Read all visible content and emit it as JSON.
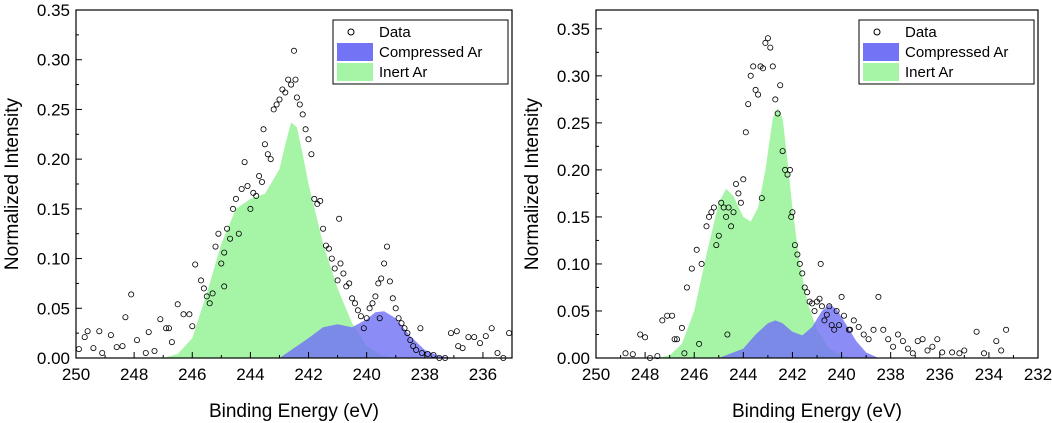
{
  "chart_data": [
    {
      "type": "scatter",
      "title": "",
      "xlabel": "Binding Energy (eV)",
      "ylabel": "Normalized Intensity",
      "xlim": [
        250,
        235
      ],
      "ylim": [
        0,
        0.35
      ],
      "xticks": [
        250,
        248,
        246,
        244,
        242,
        240,
        238,
        236
      ],
      "xtick_labels": [
        "250",
        "248",
        "246",
        "244",
        "242",
        "240",
        "238",
        "236"
      ],
      "yticks": [
        0,
        0.05,
        0.1,
        0.15,
        0.2,
        0.25,
        0.3,
        0.35
      ],
      "ytick_labels": [
        "0.00",
        "0.05",
        "0.10",
        "0.15",
        "0.20",
        "0.25",
        "0.30",
        "0.35"
      ],
      "legend": [
        "Data",
        "Compressed Ar",
        "Inert Ar"
      ],
      "legend_position": "top-right",
      "series": [
        {
          "name": "Inert Ar",
          "kind": "area",
          "color": "#a6f5a6",
          "x": [
            247.0,
            246.5,
            246.0,
            245.5,
            245.0,
            244.5,
            244.0,
            243.5,
            243.0,
            242.8,
            242.6,
            242.4,
            242.2,
            242.0,
            241.5,
            241.0,
            240.5,
            240.0,
            239.5,
            239.0
          ],
          "y": [
            0.0,
            0.004,
            0.02,
            0.065,
            0.115,
            0.15,
            0.16,
            0.165,
            0.19,
            0.215,
            0.237,
            0.232,
            0.205,
            0.175,
            0.115,
            0.07,
            0.035,
            0.012,
            0.003,
            0.0
          ]
        },
        {
          "name": "Compressed Ar",
          "kind": "area",
          "color": "#7373f5",
          "x": [
            243.0,
            242.0,
            241.5,
            241.0,
            240.5,
            240.0,
            239.7,
            239.4,
            239.0,
            238.5,
            238.0,
            237.5,
            237.0
          ],
          "y": [
            0.0,
            0.02,
            0.031,
            0.034,
            0.031,
            0.039,
            0.046,
            0.047,
            0.04,
            0.022,
            0.008,
            0.002,
            0.0
          ]
        },
        {
          "name": "Data",
          "kind": "points",
          "x": [
            249.9,
            249.6,
            249.4,
            249.1,
            248.8,
            248.6,
            248.3,
            248.1,
            247.9,
            247.5,
            247.3,
            247.1,
            246.9,
            246.7,
            246.5,
            246.3,
            246.1,
            245.9,
            245.7,
            245.6,
            245.5,
            245.4,
            245.2,
            245.1,
            245.0,
            244.9,
            244.8,
            244.7,
            244.6,
            244.5,
            244.4,
            244.3,
            244.2,
            244.1,
            244.0,
            243.9,
            243.8,
            243.7,
            243.6,
            243.5,
            243.4,
            243.3,
            243.2,
            243.1,
            243.0,
            242.9,
            242.8,
            242.7,
            242.6,
            242.5,
            242.4,
            242.3,
            242.2,
            242.1,
            242.0,
            241.9,
            241.8,
            241.7,
            241.6,
            241.5,
            241.4,
            241.3,
            241.2,
            241.1,
            241.0,
            240.9,
            240.8,
            240.7,
            240.6,
            240.5,
            240.4,
            240.3,
            240.2,
            240.1,
            240.0,
            239.9,
            239.8,
            239.7,
            239.6,
            239.5,
            239.4,
            239.3,
            239.2,
            239.1,
            239.0,
            238.9,
            238.8,
            238.7,
            238.6,
            238.5,
            238.4,
            238.3,
            238.1,
            237.9,
            237.7,
            237.5,
            237.3,
            237.1,
            236.9,
            236.7,
            236.5,
            236.3,
            236.1,
            235.9,
            235.7,
            235.5,
            235.3,
            235.1,
            244.9,
            245.3,
            246.0,
            246.8,
            247.6,
            248.4,
            249.2,
            249.7,
            243.55,
            242.45,
            240.95,
            239.55,
            238.15,
            236.85
          ],
          "y": [
            0.009,
            0.027,
            0.01,
            0.005,
            0.023,
            0.011,
            0.041,
            0.064,
            0.018,
            0.026,
            0.007,
            0.039,
            0.03,
            0.016,
            0.054,
            0.044,
            0.044,
            0.094,
            0.078,
            0.07,
            0.062,
            0.055,
            0.112,
            0.125,
            0.095,
            0.106,
            0.13,
            0.12,
            0.15,
            0.16,
            0.125,
            0.17,
            0.197,
            0.173,
            0.15,
            0.166,
            0.163,
            0.183,
            0.177,
            0.215,
            0.205,
            0.2,
            0.25,
            0.255,
            0.26,
            0.27,
            0.267,
            0.28,
            0.275,
            0.309,
            0.262,
            0.255,
            0.245,
            0.23,
            0.22,
            0.205,
            0.16,
            0.155,
            0.158,
            0.13,
            0.113,
            0.11,
            0.1,
            0.09,
            0.078,
            0.095,
            0.085,
            0.072,
            0.075,
            0.06,
            0.055,
            0.048,
            0.042,
            0.03,
            0.04,
            0.05,
            0.055,
            0.062,
            0.075,
            0.08,
            0.095,
            0.112,
            0.077,
            0.06,
            0.05,
            0.04,
            0.035,
            0.03,
            0.025,
            0.018,
            0.012,
            0.008,
            0.005,
            0.004,
            0.003,
            0.0,
            0.0,
            0.025,
            0.027,
            0.01,
            0.021,
            0.021,
            0.015,
            0.022,
            0.03,
            0.005,
            0.0,
            0.025,
            0.072,
            0.065,
            0.032,
            0.03,
            0.005,
            0.012,
            0.027,
            0.021,
            0.23,
            0.28,
            0.14,
            0.04,
            0.03,
            0.012
          ]
        }
      ]
    },
    {
      "type": "scatter",
      "title": "",
      "xlabel": "Binding Energy (eV)",
      "ylabel": "Normalized Intensity",
      "xlim": [
        250,
        232
      ],
      "ylim": [
        0,
        0.37
      ],
      "xticks": [
        250,
        248,
        246,
        244,
        242,
        240,
        238,
        236,
        234,
        232
      ],
      "xtick_labels": [
        "250",
        "248",
        "246",
        "244",
        "242",
        "240",
        "238",
        "236",
        "234",
        "232"
      ],
      "yticks": [
        0,
        0.05,
        0.1,
        0.15,
        0.2,
        0.25,
        0.3,
        0.35
      ],
      "ytick_labels": [
        "0.00",
        "0.05",
        "0.10",
        "0.15",
        "0.20",
        "0.25",
        "0.30",
        "0.35"
      ],
      "legend": [
        "Data",
        "Compressed Ar",
        "Inert Ar"
      ],
      "legend_position": "top-right",
      "series": [
        {
          "name": "Inert Ar",
          "kind": "area",
          "color": "#a6f5a6",
          "x": [
            247.5,
            247.0,
            246.5,
            246.0,
            245.5,
            245.0,
            244.7,
            244.4,
            244.0,
            243.7,
            243.4,
            243.1,
            242.8,
            242.6,
            242.4,
            242.2,
            242.0,
            241.7,
            241.4,
            241.0,
            240.5,
            240.0,
            239.5
          ],
          "y": [
            0.0,
            0.003,
            0.015,
            0.05,
            0.11,
            0.165,
            0.18,
            0.172,
            0.15,
            0.145,
            0.16,
            0.2,
            0.255,
            0.266,
            0.255,
            0.21,
            0.16,
            0.1,
            0.06,
            0.03,
            0.01,
            0.003,
            0.0
          ]
        },
        {
          "name": "Compressed Ar",
          "kind": "area",
          "color": "#7373f5",
          "x": [
            245.0,
            244.0,
            243.5,
            243.0,
            242.7,
            242.4,
            242.0,
            241.6,
            241.2,
            240.8,
            240.5,
            240.2,
            239.8,
            239.4,
            239.0,
            238.5
          ],
          "y": [
            0.0,
            0.01,
            0.025,
            0.037,
            0.04,
            0.037,
            0.028,
            0.024,
            0.033,
            0.05,
            0.057,
            0.052,
            0.035,
            0.018,
            0.006,
            0.0
          ]
        },
        {
          "name": "Data",
          "kind": "points",
          "x": [
            248.8,
            248.5,
            248.2,
            248.0,
            247.8,
            247.5,
            247.3,
            247.1,
            246.9,
            246.7,
            246.5,
            246.3,
            246.1,
            245.9,
            245.7,
            245.5,
            245.4,
            245.3,
            245.2,
            245.1,
            245.0,
            244.9,
            244.8,
            244.7,
            244.6,
            244.5,
            244.4,
            244.3,
            244.2,
            244.1,
            244.0,
            243.9,
            243.8,
            243.7,
            243.6,
            243.5,
            243.4,
            243.3,
            243.2,
            243.1,
            243.0,
            242.9,
            242.8,
            242.7,
            242.6,
            242.5,
            242.4,
            242.3,
            242.2,
            242.1,
            242.0,
            241.9,
            241.8,
            241.7,
            241.6,
            241.5,
            241.4,
            241.3,
            241.2,
            241.1,
            241.0,
            240.9,
            240.8,
            240.7,
            240.6,
            240.5,
            240.4,
            240.3,
            240.2,
            240.1,
            240.0,
            239.9,
            239.7,
            239.5,
            239.3,
            239.1,
            238.9,
            238.7,
            238.5,
            238.3,
            238.1,
            237.9,
            237.7,
            237.5,
            237.3,
            237.1,
            236.9,
            236.7,
            236.5,
            236.3,
            236.1,
            235.9,
            235.5,
            235.2,
            235.0,
            234.5,
            234.2,
            233.7,
            233.5,
            233.3,
            246.8,
            246.4,
            245.8,
            244.65,
            243.25,
            242.05,
            240.85,
            239.65
          ],
          "y": [
            0.005,
            0.004,
            0.025,
            0.022,
            0.0,
            0.002,
            0.04,
            0.045,
            0.045,
            0.02,
            0.032,
            0.075,
            0.095,
            0.115,
            0.1,
            0.14,
            0.15,
            0.155,
            0.16,
            0.12,
            0.13,
            0.165,
            0.16,
            0.15,
            0.16,
            0.14,
            0.155,
            0.185,
            0.175,
            0.165,
            0.19,
            0.24,
            0.27,
            0.3,
            0.31,
            0.285,
            0.28,
            0.31,
            0.308,
            0.335,
            0.34,
            0.33,
            0.31,
            0.275,
            0.26,
            0.29,
            0.22,
            0.2,
            0.195,
            0.2,
            0.155,
            0.12,
            0.11,
            0.1,
            0.09,
            0.075,
            0.07,
            0.06,
            0.058,
            0.05,
            0.06,
            0.063,
            0.055,
            0.04,
            0.046,
            0.055,
            0.035,
            0.03,
            0.05,
            0.035,
            0.065,
            0.045,
            0.03,
            0.04,
            0.033,
            0.025,
            0.02,
            0.03,
            0.065,
            0.03,
            0.02,
            0.012,
            0.025,
            0.018,
            0.01,
            0.005,
            0.018,
            0.02,
            0.008,
            0.012,
            0.02,
            0.006,
            0.006,
            0.005,
            0.008,
            0.028,
            0.005,
            0.018,
            0.008,
            0.03,
            0.02,
            0.005,
            0.015,
            0.025,
            0.17,
            0.15,
            0.1,
            0.03
          ]
        }
      ]
    }
  ]
}
